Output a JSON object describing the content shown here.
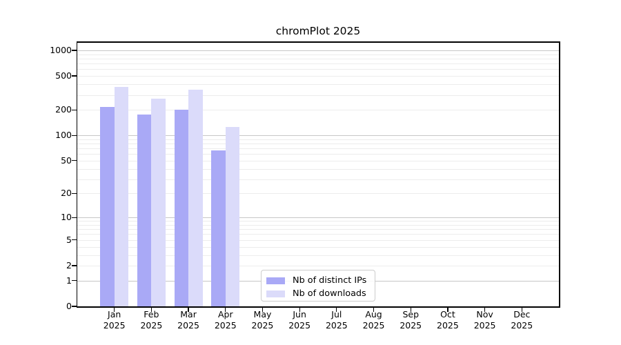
{
  "chart_data": {
    "type": "bar",
    "title": "chromPlot 2025",
    "categories": [
      "Jan 2025",
      "Feb 2025",
      "Mar 2025",
      "Apr 2025",
      "May 2025",
      "Jun 2025",
      "Jul 2025",
      "Aug 2025",
      "Sep 2025",
      "Oct 2025",
      "Nov 2025",
      "Dec 2025"
    ],
    "series": [
      {
        "name": "Nb of distinct IPs",
        "color": "#a9a9f6",
        "values": [
          215,
          175,
          200,
          66,
          null,
          null,
          null,
          null,
          null,
          null,
          null,
          null
        ]
      },
      {
        "name": "Nb of downloads",
        "color": "#dbdbfa",
        "values": [
          375,
          270,
          345,
          125,
          null,
          null,
          null,
          null,
          null,
          null,
          null,
          null
        ]
      }
    ],
    "yscale": "log10(x+1)",
    "yticks": [
      0,
      1,
      2,
      5,
      10,
      20,
      50,
      100,
      200,
      500,
      1000
    ],
    "ylim": [
      0,
      1250
    ],
    "xlabel": "",
    "ylabel": "",
    "grid": "horizontal; darker lines at decades (1,10,100,1000), faint log minors (2-9 per decade)",
    "legend_position": "lower center"
  },
  "colors": {
    "grid_major": "#c6c6c6",
    "grid_minor": "#ececec",
    "axis": "#000000",
    "background": "#ffffff"
  }
}
